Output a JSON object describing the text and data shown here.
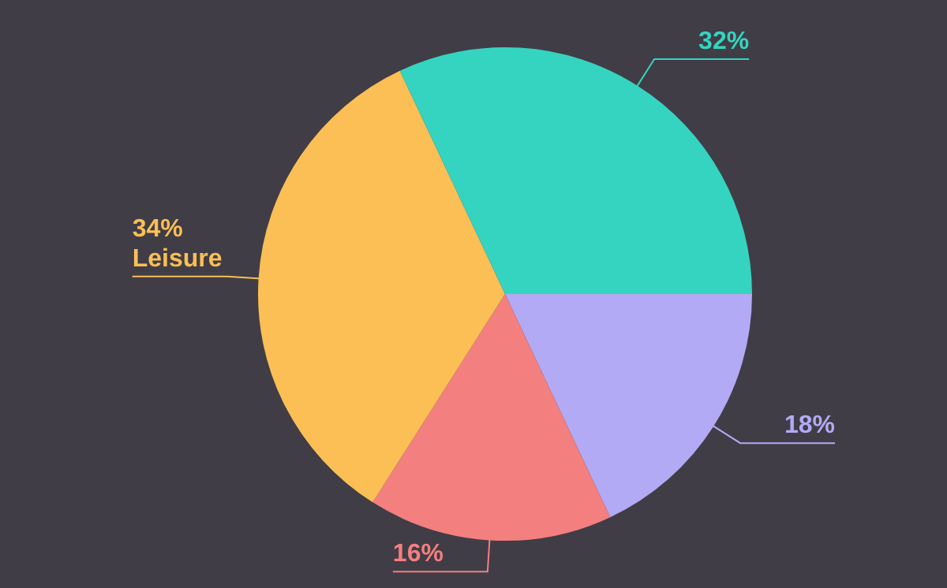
{
  "chart_data": {
    "type": "pie",
    "categories": [
      null,
      null,
      "Leisure",
      null
    ],
    "values": [
      18,
      16,
      34,
      32
    ],
    "colors": [
      "#b3aaf5",
      "#f47f7f",
      "#fbbf55",
      "#35d4c0"
    ],
    "value_labels": [
      "18%",
      "16%",
      "34%",
      "32%"
    ],
    "legend": false
  }
}
